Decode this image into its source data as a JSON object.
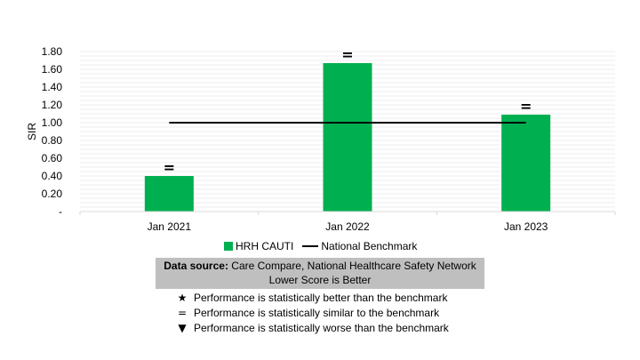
{
  "chart_data": {
    "type": "bar",
    "categories": [
      "Jan 2021",
      "Jan 2022",
      "Jan 2023"
    ],
    "series": [
      {
        "name": "HRH CAUTI",
        "values": [
          0.4,
          1.67,
          1.09
        ],
        "color": "#00b050",
        "symbols": [
          "=",
          "=",
          "="
        ]
      },
      {
        "name": "National Benchmark",
        "type": "line",
        "values": [
          1.0,
          1.0,
          1.0
        ],
        "color": "#000000"
      }
    ],
    "ylabel": "SIR",
    "xlabel": "",
    "ylim": [
      0,
      1.8
    ],
    "yticks": [
      0,
      0.2,
      0.4,
      0.6,
      0.8,
      1.0,
      1.2,
      1.4,
      1.6,
      1.8
    ],
    "ytick_labels": [
      "-",
      "0.20",
      "0.40",
      "0.60",
      "0.80",
      "1.00",
      "1.20",
      "1.40",
      "1.60",
      "1.80"
    ],
    "grid": true,
    "legend_position": "bottom"
  },
  "legend": {
    "bar_label": "HRH CAUTI",
    "line_label": "National Benchmark"
  },
  "source": {
    "prefix": "Data source:",
    "text": " Care Compare, National Healthcare Safety Network",
    "note": "Lower Score is Better"
  },
  "key": [
    {
      "symbol": "★",
      "icon": "star-icon",
      "text": "Performance is statistically better than the benchmark"
    },
    {
      "symbol": "=",
      "icon": "equals-icon",
      "text": "Performance is statistically similar to the benchmark"
    },
    {
      "symbol": "▼",
      "icon": "down-triangle-icon",
      "text": "Performance is statistically worse than the benchmark"
    }
  ]
}
